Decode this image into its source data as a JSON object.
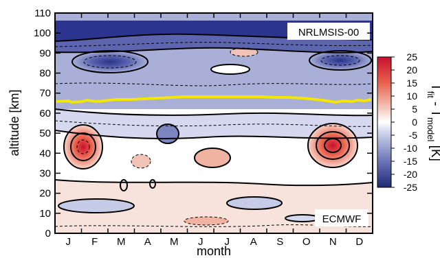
{
  "chart_data": {
    "type": "heatmap",
    "xlabel": "month",
    "ylabel": "altitude [km]",
    "months": [
      "J",
      "F",
      "M",
      "A",
      "M",
      "J",
      "J",
      "A",
      "S",
      "O",
      "N",
      "D"
    ],
    "yticks": [
      0,
      10,
      20,
      30,
      40,
      50,
      60,
      70,
      80,
      90,
      100,
      110
    ],
    "ylim": [
      0,
      110
    ],
    "upper_label": "NRLMSIS-00",
    "lower_label": "ECMWF",
    "colorbar": {
      "label": "T_fit - T_model [K]",
      "label_main": "T",
      "label_sub1": "fit",
      "label_mid": " - T",
      "label_sub2": "model",
      "label_unit": " [K]",
      "ticks": [
        25,
        20,
        15,
        10,
        5,
        0,
        -5,
        -10,
        -15,
        -20,
        -25
      ],
      "range": [
        -25,
        25
      ]
    },
    "boundary_altitude_km": 69,
    "colors": {
      "boundary": "#f3e600",
      "warm": "#c8102e",
      "cold": "#1e2a78"
    },
    "features": [
      {
        "month": "Jan-Feb",
        "altitude_km": 41,
        "delta_K": 15
      },
      {
        "month": "Nov",
        "altitude_km": 42,
        "delta_K": 22
      },
      {
        "month": "Jun-Jul",
        "altitude_km": 104,
        "delta_K": -25
      },
      {
        "month": "Jan-Mar",
        "altitude_km": 86,
        "delta_K": -18
      },
      {
        "month": "Dec",
        "altitude_km": 86,
        "delta_K": -18
      },
      {
        "month": "Jul",
        "altitude_km": 81,
        "delta_K": 8
      }
    ]
  }
}
